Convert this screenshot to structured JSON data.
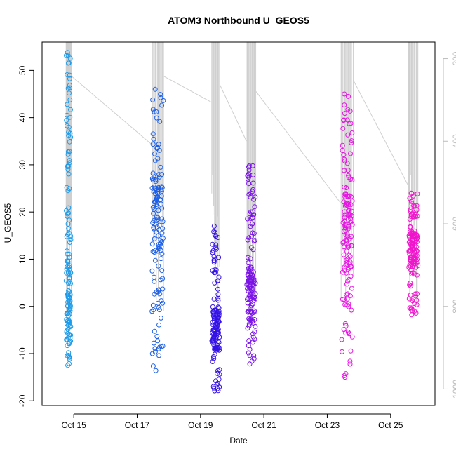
{
  "chart_data": {
    "type": "scatter",
    "title": "ATOM3 Northbound U_GEOS5",
    "xlabel": "Date",
    "ylabel": "U_GEOS5",
    "x_unit": "day of October",
    "xlim": [
      14.0,
      26.4
    ],
    "ylim": [
      -21.0,
      56.0
    ],
    "y2lim": [
      1040,
      160
    ],
    "y2_reversed": true,
    "x_ticks": [
      {
        "value": 15,
        "label": "Oct 15"
      },
      {
        "value": 17,
        "label": "Oct 17"
      },
      {
        "value": 19,
        "label": "Oct 19"
      },
      {
        "value": 21,
        "label": "Oct 21"
      },
      {
        "value": 23,
        "label": "Oct 23"
      },
      {
        "value": 25,
        "label": "Oct 25"
      }
    ],
    "y_ticks": [
      -20,
      -10,
      0,
      10,
      20,
      30,
      40,
      50
    ],
    "y2_ticks": [
      200,
      400,
      600,
      800,
      1000
    ],
    "marker": "open-circle",
    "color_scale": "time",
    "segments": [
      {
        "x_start": 14.75,
        "x_end": 14.92,
        "y_min": -12.5,
        "y_max": 53.8,
        "cluster_y": 1.5,
        "color": "#1e9be8"
      },
      {
        "x_start": 17.45,
        "x_end": 17.85,
        "y_min": -13.6,
        "y_max": 46.0,
        "cluster_y": 20.0,
        "color": "#1c5fe6"
      },
      {
        "x_start": 19.35,
        "x_end": 19.62,
        "y_min": -17.9,
        "y_max": 17.0,
        "cluster_y": -5.0,
        "color": "#3412e6"
      },
      {
        "x_start": 20.45,
        "x_end": 20.75,
        "y_min": -12.2,
        "y_max": 29.8,
        "cluster_y": 2.0,
        "color": "#7a12e6"
      },
      {
        "x_start": 23.42,
        "x_end": 23.82,
        "y_min": -15.0,
        "y_max": 45.0,
        "cluster_y": 15.0,
        "color": "#e614e2"
      },
      {
        "x_start": 25.55,
        "x_end": 25.88,
        "y_min": -1.8,
        "y_max": 24.0,
        "cluster_y": 12.0,
        "color": "#f014cc"
      }
    ],
    "grid": false,
    "legend": "none"
  }
}
